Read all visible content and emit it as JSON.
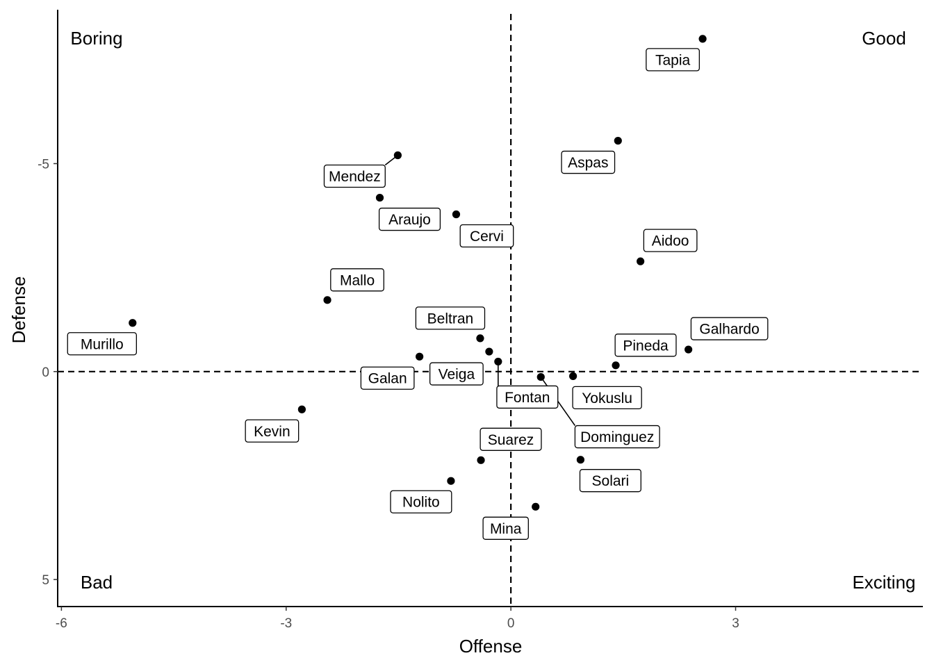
{
  "chart_data": {
    "type": "scatter",
    "xlabel": "Offense",
    "ylabel": "Defense",
    "xlim": [
      -6.05,
      5.5
    ],
    "ylim": [
      -8.7,
      5.65
    ],
    "y_reversed": true,
    "x_ticks": [
      -6,
      -3,
      0,
      3
    ],
    "x_tick_labels": [
      "-6",
      "-3",
      "0",
      "3"
    ],
    "y_ticks": [
      -5,
      0,
      5
    ],
    "y_tick_labels": [
      "-5",
      "0",
      "5"
    ],
    "reference_lines": {
      "x": 0,
      "y": 0,
      "style": "dashed"
    },
    "grid": false,
    "quadrant_labels": [
      {
        "text": "Boring",
        "position": "top-left"
      },
      {
        "text": "Good",
        "position": "top-right"
      },
      {
        "text": "Bad",
        "position": "bottom-left"
      },
      {
        "text": "Exciting",
        "position": "bottom-right"
      }
    ],
    "points": [
      {
        "name": "Tapia",
        "x": 2.56,
        "y": -8.0
      },
      {
        "name": "Aspas",
        "x": 1.43,
        "y": -5.55
      },
      {
        "name": "Mendez",
        "x": -1.51,
        "y": -5.2
      },
      {
        "name": "Araujo",
        "x": -1.75,
        "y": -4.18
      },
      {
        "name": "Cervi",
        "x": -0.73,
        "y": -3.78
      },
      {
        "name": "Aidoo",
        "x": 1.73,
        "y": -2.65
      },
      {
        "name": "Mallo",
        "x": -2.45,
        "y": -1.72
      },
      {
        "name": "Murillo",
        "x": -5.05,
        "y": -1.17
      },
      {
        "name": "Beltran",
        "x": -0.41,
        "y": -0.8
      },
      {
        "name": "Veiga",
        "x": -0.29,
        "y": -0.48
      },
      {
        "name": "Galan",
        "x": -1.22,
        "y": -0.36
      },
      {
        "name": "Fontan",
        "x": -0.17,
        "y": -0.24
      },
      {
        "name": "Galhardo",
        "x": 2.37,
        "y": -0.53
      },
      {
        "name": "Pineda",
        "x": 1.4,
        "y": -0.15
      },
      {
        "name": "Yokuslu",
        "x": 0.83,
        "y": 0.11
      },
      {
        "name": "Dominguez",
        "x": 0.4,
        "y": 0.13
      },
      {
        "name": "Kevin",
        "x": -2.79,
        "y": 0.91
      },
      {
        "name": "Suarez",
        "x": -0.4,
        "y": 2.13
      },
      {
        "name": "Solari",
        "x": 0.93,
        "y": 2.12
      },
      {
        "name": "Nolito",
        "x": -0.8,
        "y": 2.63
      },
      {
        "name": "Mina",
        "x": 0.33,
        "y": 3.25
      }
    ]
  }
}
